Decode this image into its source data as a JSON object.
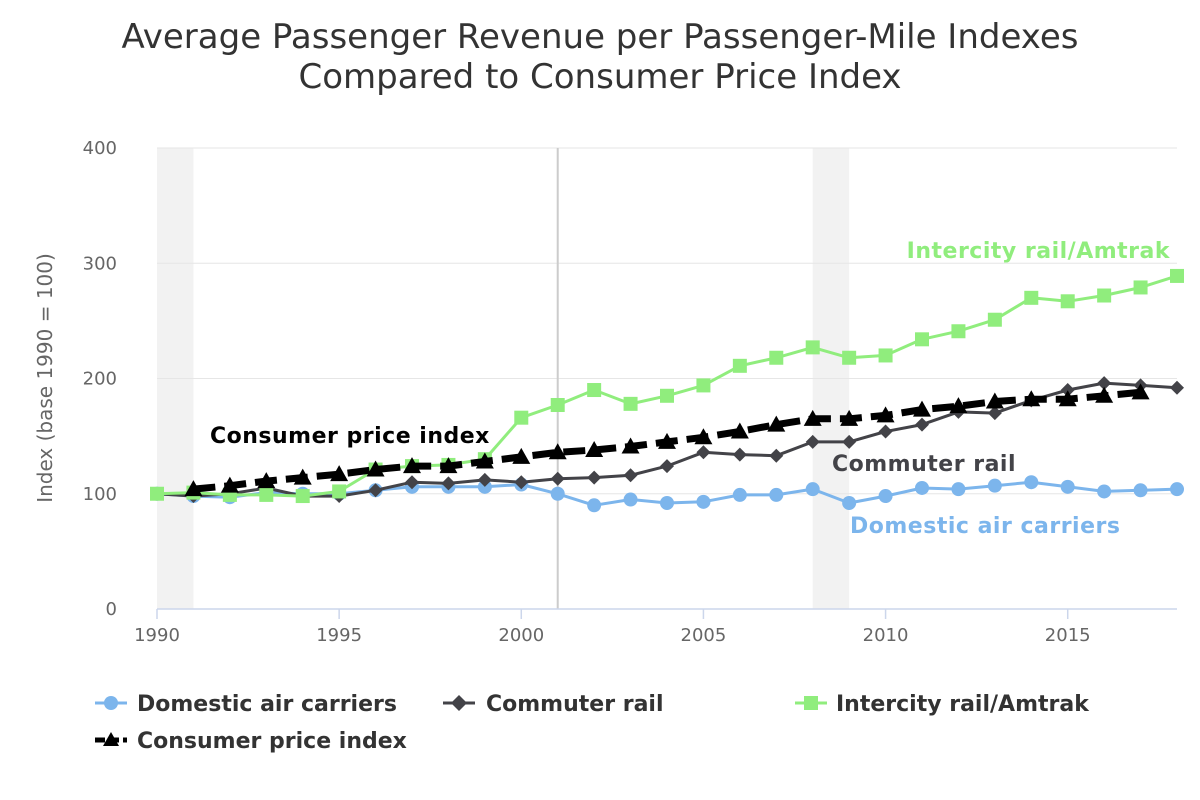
{
  "chart_data": {
    "type": "line",
    "title": [
      "Average Passenger Revenue per Passenger-Mile Indexes",
      "Compared to Consumer Price Index"
    ],
    "ylabel": "Index (base 1990 = 100)",
    "xlabel": "",
    "xlim": [
      1990,
      2018
    ],
    "ylim": [
      0,
      400
    ],
    "x_ticks": [
      1990,
      1995,
      2000,
      2005,
      2010,
      2015
    ],
    "y_ticks": [
      0,
      100,
      200,
      300,
      400
    ],
    "grid": "horizontal",
    "recession_bands": [
      [
        1990,
        1991
      ],
      [
        2008,
        2009
      ]
    ],
    "vertical_marker": 2001,
    "x": [
      1990,
      1991,
      1992,
      1993,
      1994,
      1995,
      1996,
      1997,
      1998,
      1999,
      2000,
      2001,
      2002,
      2003,
      2004,
      2005,
      2006,
      2007,
      2008,
      2009,
      2010,
      2011,
      2012,
      2013,
      2014,
      2015,
      2016,
      2017,
      2018
    ],
    "series": [
      {
        "name": "Domestic air carriers",
        "color": "#7cb5ec",
        "marker": "circle",
        "dash": "solid",
        "values": [
          100,
          98,
          97,
          101,
          100,
          100,
          103,
          106,
          106,
          106,
          108,
          100,
          90,
          95,
          92,
          93,
          99,
          99,
          104,
          92,
          98,
          105,
          104,
          107,
          110,
          106,
          102,
          103,
          104
        ]
      },
      {
        "name": "Commuter rail",
        "color": "#434348",
        "marker": "diamond",
        "dash": "solid",
        "values": [
          100,
          98,
          100,
          105,
          98,
          98,
          103,
          110,
          109,
          112,
          110,
          113,
          114,
          116,
          124,
          136,
          134,
          133,
          145,
          145,
          154,
          160,
          171,
          170,
          181,
          190,
          196,
          194,
          192
        ]
      },
      {
        "name": "Intercity rail/Amtrak",
        "color": "#90ed7d",
        "marker": "square",
        "dash": "solid",
        "values": [
          100,
          101,
          99,
          99,
          98,
          102,
          121,
          124,
          125,
          130,
          166,
          177,
          190,
          178,
          185,
          194,
          211,
          218,
          227,
          218,
          220,
          234,
          241,
          251,
          270,
          267,
          272,
          279,
          289
        ]
      },
      {
        "name": "Consumer price index",
        "color": "#000000",
        "marker": "triangle",
        "dash": "dashed",
        "values": [
          null,
          104,
          107,
          111,
          114,
          117,
          121,
          124,
          124,
          128,
          132,
          136,
          138,
          141,
          145,
          149,
          154,
          160,
          165,
          165,
          168,
          173,
          176,
          180,
          182,
          182,
          185,
          188,
          null
        ]
      }
    ],
    "annotations": [
      {
        "text": "Intercity rail/Amtrak",
        "color": "#90ed7d"
      },
      {
        "text": "Consumer price index",
        "color": "#000000"
      },
      {
        "text": "Commuter rail",
        "color": "#434348"
      },
      {
        "text": "Domestic air carriers",
        "color": "#7cb5ec"
      }
    ],
    "legend": {
      "position": "bottom",
      "items": [
        "Domestic air carriers",
        "Commuter rail",
        "Intercity rail/Amtrak",
        "Consumer price index"
      ]
    }
  }
}
